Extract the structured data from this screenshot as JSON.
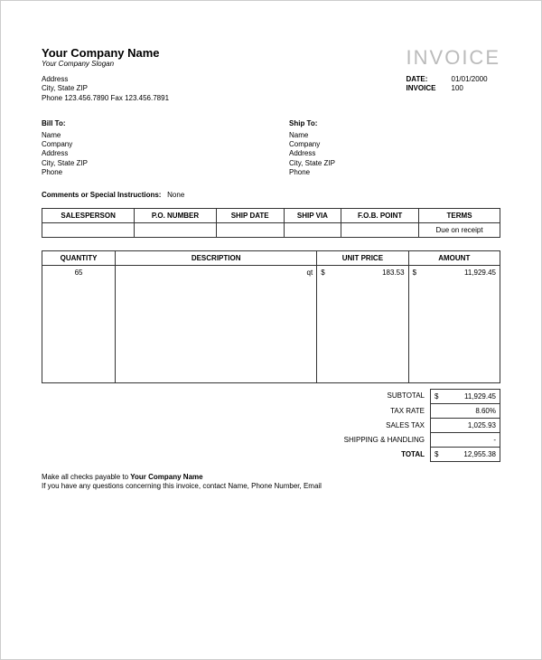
{
  "company": {
    "name": "Your Company Name",
    "slogan": "Your Company Slogan",
    "address": "Address",
    "city_state_zip": "City, State ZIP",
    "phone_fax": "Phone 123.456.7890   Fax 123.456.7891"
  },
  "invoice": {
    "title": "INVOICE",
    "date_label": "DATE:",
    "date": "01/01/2000",
    "number_label": "INVOICE",
    "number": "100"
  },
  "bill_to": {
    "heading": "Bill To:",
    "name": "Name",
    "company": "Company",
    "address": "Address",
    "city_state_zip": "City, State ZIP",
    "phone": "Phone"
  },
  "ship_to": {
    "heading": "Ship To:",
    "name": "Name",
    "company": "Company",
    "address": "Address",
    "city_state_zip": "City, State ZIP",
    "phone": "Phone"
  },
  "comments": {
    "label": "Comments or Special Instructions:",
    "value": "None"
  },
  "meta_table": {
    "headers": {
      "salesperson": "SALESPERSON",
      "po_number": "P.O. NUMBER",
      "ship_date": "SHIP DATE",
      "ship_via": "SHIP VIA",
      "fob_point": "F.O.B. POINT",
      "terms": "TERMS"
    },
    "row": {
      "salesperson": "",
      "po_number": "",
      "ship_date": "",
      "ship_via": "",
      "fob_point": "",
      "terms": "Due on receipt"
    }
  },
  "items_table": {
    "headers": {
      "quantity": "QUANTITY",
      "description": "DESCRIPTION",
      "unit_price": "UNIT PRICE",
      "amount": "AMOUNT"
    },
    "row": {
      "quantity": "65",
      "description": "qt",
      "unit_price_sym": "$",
      "unit_price": "183.53",
      "amount_sym": "$",
      "amount": "11,929.45"
    }
  },
  "totals": {
    "subtotal_label": "SUBTOTAL",
    "subtotal_sym": "$",
    "subtotal": "11,929.45",
    "taxrate_label": "TAX RATE",
    "taxrate": "8.60%",
    "salestax_label": "SALES TAX",
    "salestax": "1,025.93",
    "shipping_label": "SHIPPING & HANDLING",
    "shipping": "-",
    "total_label": "TOTAL",
    "total_sym": "$",
    "total": "12,955.38"
  },
  "footer": {
    "line1_pre": "Make all checks payable to ",
    "line1_bold": "Your Company Name",
    "line2": "If you have any questions concerning this invoice, contact Name, Phone Number, Email"
  }
}
